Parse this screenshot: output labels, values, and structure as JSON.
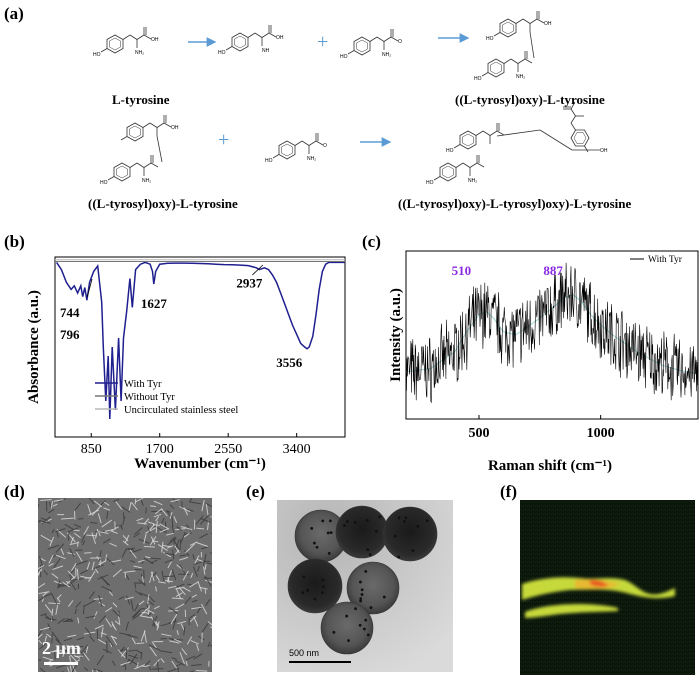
{
  "panels": {
    "a": "(a)",
    "b": "(b)",
    "c": "(c)",
    "d": "(d)",
    "e": "(e)",
    "f": "(f)"
  },
  "scheme": {
    "labels": {
      "tyrosine": "L-tyrosine",
      "dimer_top": "((L-tyrosyl)oxy)-L-tyrosine",
      "dimer_left": "((L-tyrosyl)oxy)-L-tyrosine",
      "trimer": "((L-tyrosyl)oxy)-L-tyrosyl)oxy)-L-tyrosine"
    },
    "plus": "+",
    "atoms": {
      "HO": "HO",
      "OH": "OH",
      "NH2": "NH₂",
      "O": "O",
      "NH": "NH"
    },
    "colors": {
      "arrow": "#5b9bd5",
      "plus": "#5b9bd5"
    }
  },
  "chart_data": [
    {
      "type": "line",
      "panel": "b",
      "xlabel": "Wavenumber (cm⁻¹)",
      "ylabel": "Absorbance (a.u.)",
      "xlim": [
        400,
        4000
      ],
      "ylim": [
        0,
        1
      ],
      "xticks": [
        850,
        1700,
        2550,
        3400
      ],
      "annotations": [
        {
          "text": "744",
          "x": 744
        },
        {
          "text": "796",
          "x": 796
        },
        {
          "text": "1627",
          "x": 1627
        },
        {
          "text": "2937",
          "x": 2937
        },
        {
          "text": "3556",
          "x": 3556
        }
      ],
      "legend_position": "bottom-center",
      "series": [
        {
          "name": "With Tyr",
          "color": "#1f1f8f",
          "x": [
            420,
            480,
            540,
            600,
            640,
            680,
            720,
            744,
            770,
            796,
            830,
            880,
            930,
            980,
            1000,
            1030,
            1060,
            1080,
            1110,
            1150,
            1190,
            1220,
            1250,
            1290,
            1330,
            1360,
            1400,
            1460,
            1520,
            1580,
            1610,
            1627,
            1650,
            1700,
            1800,
            1900,
            2000,
            2100,
            2200,
            2300,
            2400,
            2500,
            2600,
            2700,
            2800,
            2900,
            2937,
            3000,
            3050,
            3100,
            3150,
            3200,
            3250,
            3300,
            3350,
            3400,
            3450,
            3500,
            3530,
            3556,
            3600,
            3640,
            3680,
            3720,
            3760,
            3800,
            3900,
            4000
          ],
          "y": [
            0.97,
            0.93,
            0.86,
            0.82,
            0.84,
            0.8,
            0.84,
            0.78,
            0.83,
            0.76,
            0.86,
            0.92,
            0.95,
            0.75,
            0.5,
            0.2,
            0.45,
            0.1,
            0.5,
            0.15,
            0.55,
            0.2,
            0.55,
            0.7,
            0.88,
            0.72,
            0.93,
            0.96,
            0.97,
            0.96,
            0.92,
            0.85,
            0.92,
            0.96,
            0.965,
            0.966,
            0.966,
            0.965,
            0.964,
            0.962,
            0.96,
            0.958,
            0.957,
            0.955,
            0.952,
            0.94,
            0.93,
            0.94,
            0.93,
            0.9,
            0.86,
            0.8,
            0.74,
            0.68,
            0.62,
            0.57,
            0.52,
            0.5,
            0.49,
            0.5,
            0.56,
            0.68,
            0.82,
            0.92,
            0.96,
            0.97,
            0.97,
            0.97
          ]
        },
        {
          "name": "Without Tyr",
          "color": "#777777",
          "x": [
            400,
            4000
          ],
          "y": [
            0.975,
            0.975
          ]
        },
        {
          "name": "Uncirculated stainless steel",
          "color": "#b8b8b8",
          "x": [
            400,
            4000
          ],
          "y": [
            0.985,
            0.985
          ]
        }
      ]
    },
    {
      "type": "line",
      "panel": "c",
      "xlabel": "Raman shift (cm⁻¹)",
      "ylabel": "Intensity (a.u.)",
      "xlim": [
        200,
        1400
      ],
      "ylim": [
        0,
        1
      ],
      "xticks": [
        500,
        1000
      ],
      "annotations": [
        {
          "text": "510",
          "x": 510,
          "color": "#8a2be2"
        },
        {
          "text": "887",
          "x": 887,
          "color": "#8a2be2"
        }
      ],
      "legend_position": "top-right",
      "series": [
        {
          "name": "With Tyr",
          "color": "#000000",
          "x": [
            200,
            300,
            400,
            450,
            500,
            530,
            560,
            600,
            650,
            700,
            750,
            800,
            850,
            887,
            920,
            960,
            1000,
            1050,
            1100,
            1150,
            1200,
            1250,
            1300,
            1350,
            1400
          ],
          "y": [
            0.28,
            0.3,
            0.4,
            0.52,
            0.62,
            0.64,
            0.6,
            0.52,
            0.5,
            0.55,
            0.6,
            0.66,
            0.72,
            0.74,
            0.7,
            0.62,
            0.56,
            0.5,
            0.45,
            0.4,
            0.36,
            0.32,
            0.3,
            0.28,
            0.27
          ]
        }
      ]
    }
  ],
  "images": {
    "d": {
      "scale": "2 µm"
    },
    "e": {
      "scale": "500 nm"
    },
    "f": {}
  }
}
